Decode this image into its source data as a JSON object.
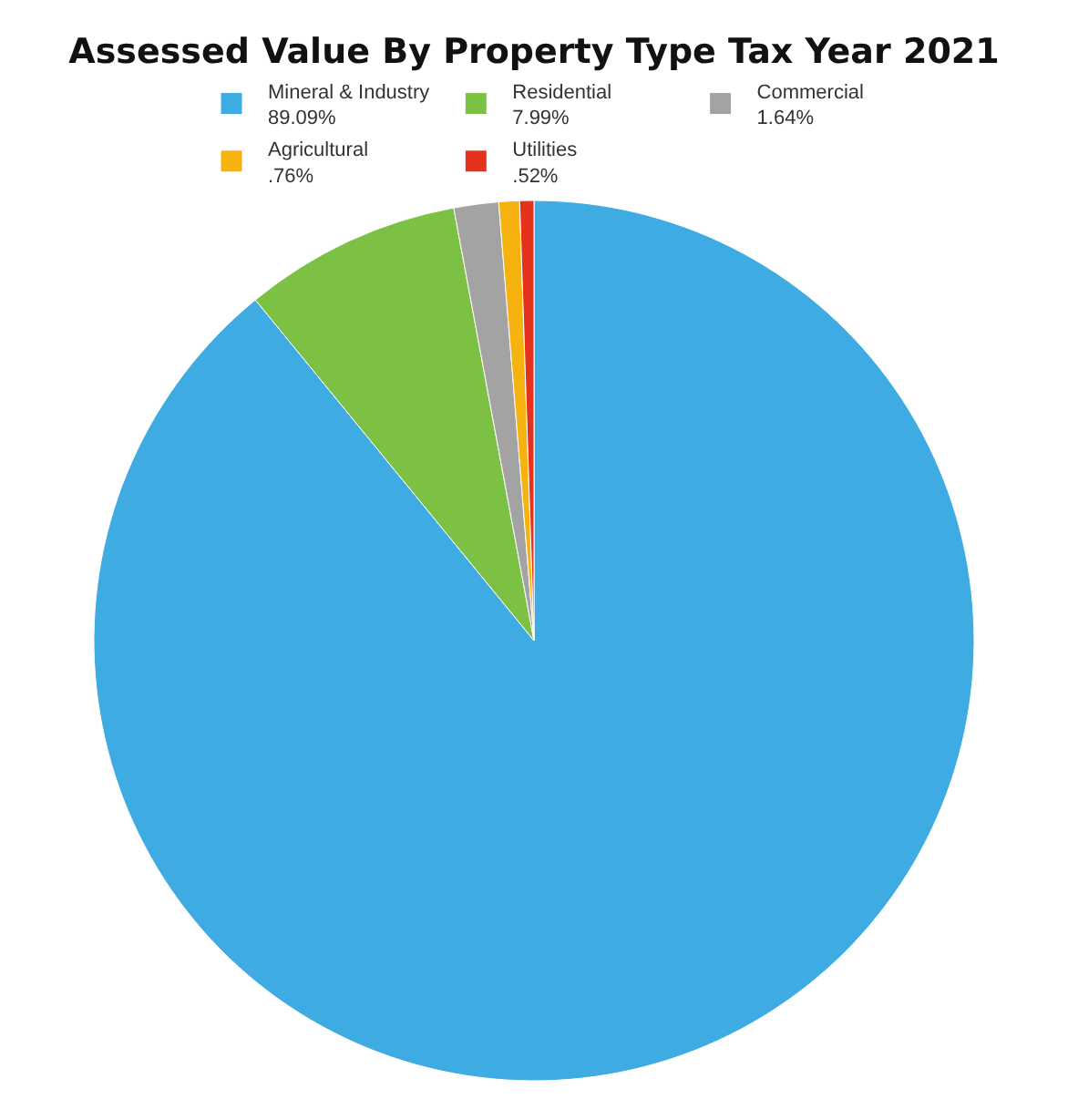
{
  "chart_data": {
    "type": "pie",
    "title": "Assessed Value By Property Type Tax Year 2021",
    "categories": [
      "Mineral & Industry",
      "Residential",
      "Commercial",
      "Agricultural",
      "Utilities"
    ],
    "values": [
      89.09,
      7.99,
      1.64,
      0.76,
      0.52
    ],
    "value_labels": [
      "89.09%",
      "7.99%",
      "1.64%",
      ".76%",
      ".52%"
    ],
    "colors": [
      "#3eabe2",
      "#7cc143",
      "#a3a3a3",
      "#f6b30f",
      "#e5321f"
    ],
    "legend": "top"
  }
}
